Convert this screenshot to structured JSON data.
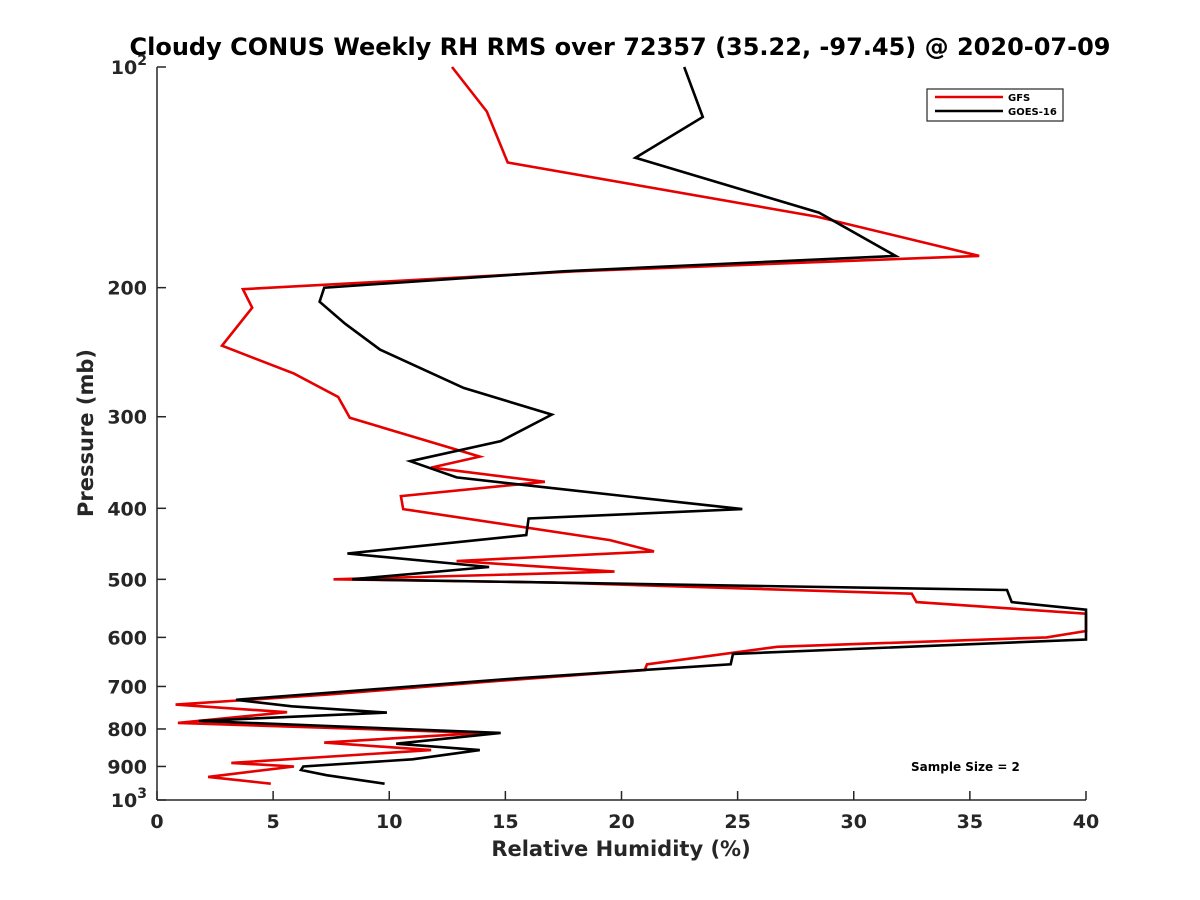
{
  "chart_data": {
    "type": "line",
    "title": "Cloudy CONUS Weekly RH RMS over 72357 (35.22, -97.45) @ 2020-07-09",
    "xlabel": "Relative Humidity (%)",
    "ylabel": "Pressure (mb)",
    "xlim": [
      0,
      40
    ],
    "ylim": [
      100,
      1000
    ],
    "y_scale": "log",
    "y_reversed": true,
    "x_ticks": [
      "0",
      "5",
      "10",
      "15",
      "20",
      "25",
      "30",
      "35",
      "40"
    ],
    "y_ticks": [
      {
        "value": 100,
        "label": "10",
        "sup": "2"
      },
      {
        "value": 200,
        "label": "200"
      },
      {
        "value": 300,
        "label": "300"
      },
      {
        "value": 400,
        "label": "400"
      },
      {
        "value": 500,
        "label": "500"
      },
      {
        "value": 600,
        "label": "600"
      },
      {
        "value": 700,
        "label": "700"
      },
      {
        "value": 800,
        "label": "800"
      },
      {
        "value": 900,
        "label": "900"
      },
      {
        "value": 1000,
        "label": "10",
        "sup": "3"
      }
    ],
    "legend_position": "top-right",
    "grid": false,
    "annotation": "Sample Size = 2",
    "series": [
      {
        "name": "GFS",
        "color": "#e60000",
        "points": [
          [
            12.7,
            100
          ],
          [
            14.2,
            115
          ],
          [
            15.1,
            135
          ],
          [
            28.4,
            160
          ],
          [
            35.4,
            181
          ],
          [
            18.0,
            190
          ],
          [
            3.7,
            201
          ],
          [
            4.1,
            213
          ],
          [
            2.8,
            240
          ],
          [
            5.9,
            262
          ],
          [
            7.8,
            282
          ],
          [
            8.3,
            301
          ],
          [
            13.9,
            340
          ],
          [
            11.8,
            352
          ],
          [
            16.7,
            368
          ],
          [
            10.5,
            385
          ],
          [
            10.6,
            401
          ],
          [
            19.5,
            442
          ],
          [
            21.4,
            458
          ],
          [
            12.9,
            472
          ],
          [
            19.7,
            488
          ],
          [
            7.6,
            500
          ],
          [
            17.0,
            505
          ],
          [
            32.5,
            523
          ],
          [
            32.7,
            537
          ],
          [
            40.0,
            557
          ],
          [
            40.0,
            588
          ],
          [
            38.3,
            600
          ],
          [
            26.7,
            618
          ],
          [
            21.1,
            653
          ],
          [
            21.0,
            665
          ],
          [
            14.1,
            690
          ],
          [
            7.4,
            718
          ],
          [
            0.8,
            741
          ],
          [
            5.6,
            759
          ],
          [
            0.9,
            785
          ],
          [
            14.0,
            810
          ],
          [
            7.2,
            835
          ],
          [
            11.8,
            855
          ],
          [
            3.2,
            890
          ],
          [
            5.9,
            900
          ],
          [
            2.2,
            930
          ],
          [
            4.9,
            950
          ]
        ]
      },
      {
        "name": "GOES-16",
        "color": "#000000",
        "points": [
          [
            22.7,
            100
          ],
          [
            23.5,
            117
          ],
          [
            20.6,
            133
          ],
          [
            28.5,
            158
          ],
          [
            31.8,
            181
          ],
          [
            17.5,
            190
          ],
          [
            7.2,
            200
          ],
          [
            7.0,
            209
          ],
          [
            8.1,
            224
          ],
          [
            9.6,
            243
          ],
          [
            13.2,
            274
          ],
          [
            17.0,
            298
          ],
          [
            14.8,
            324
          ],
          [
            10.9,
            345
          ],
          [
            12.9,
            363
          ],
          [
            17.2,
            376
          ],
          [
            25.2,
            401
          ],
          [
            16.0,
            413
          ],
          [
            15.9,
            435
          ],
          [
            8.2,
            461
          ],
          [
            14.3,
            481
          ],
          [
            8.4,
            500
          ],
          [
            36.6,
            517
          ],
          [
            36.8,
            537
          ],
          [
            40.0,
            550
          ],
          [
            40.0,
            604
          ],
          [
            24.8,
            632
          ],
          [
            24.7,
            653
          ],
          [
            15.6,
            682
          ],
          [
            3.4,
            730
          ],
          [
            5.8,
            745
          ],
          [
            9.9,
            760
          ],
          [
            1.8,
            780
          ],
          [
            14.8,
            810
          ],
          [
            10.3,
            838
          ],
          [
            13.9,
            855
          ],
          [
            11.0,
            880
          ],
          [
            6.3,
            900
          ],
          [
            6.2,
            910
          ],
          [
            7.3,
            925
          ],
          [
            9.8,
            950
          ]
        ]
      }
    ]
  }
}
